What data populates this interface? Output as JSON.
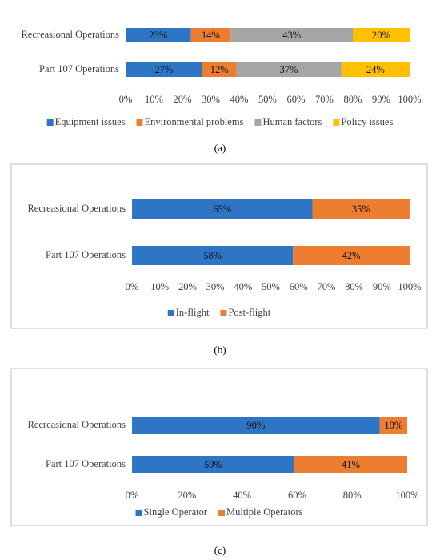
{
  "chart_data": [
    {
      "type": "stacked-bar-horizontal",
      "caption": "(a)",
      "categories": [
        "Recreasional Operations",
        "Part 107 Operations"
      ],
      "series": [
        {
          "name": "Equipment issues",
          "color": "#2e75c6",
          "values": [
            23,
            27
          ],
          "value_labels": [
            "23%",
            "27%"
          ]
        },
        {
          "name": "Environmental problems",
          "color": "#ed7d31",
          "values": [
            14,
            12
          ],
          "value_labels": [
            "14%",
            "12%"
          ]
        },
        {
          "name": "Human factors",
          "color": "#a5a5a5",
          "values": [
            43,
            37
          ],
          "value_labels": [
            "43%",
            "37%"
          ]
        },
        {
          "name": "Policy issues",
          "color": "#ffc000",
          "values": [
            20,
            24
          ],
          "value_labels": [
            "20%",
            "24%"
          ]
        }
      ],
      "xlim": [
        0,
        100
      ],
      "xticks": [
        {
          "value": 0,
          "label": "0%"
        },
        {
          "value": 10,
          "label": "10%"
        },
        {
          "value": 20,
          "label": "20%"
        },
        {
          "value": 30,
          "label": "30%"
        },
        {
          "value": 40,
          "label": "40%"
        },
        {
          "value": 50,
          "label": "50%"
        },
        {
          "value": 60,
          "label": "60%"
        },
        {
          "value": 70,
          "label": "70%"
        },
        {
          "value": 80,
          "label": "80%"
        },
        {
          "value": 90,
          "label": "90%"
        },
        {
          "value": 100,
          "label": "100%"
        }
      ],
      "legend": "bottom"
    },
    {
      "type": "stacked-bar-horizontal",
      "caption": "(b)",
      "categories": [
        "Recreasional Operations",
        "Part 107 Operations"
      ],
      "series": [
        {
          "name": "In-flight",
          "color": "#2e75c6",
          "values": [
            65,
            58
          ],
          "value_labels": [
            "65%",
            "58%"
          ]
        },
        {
          "name": "Post-flight",
          "color": "#ed7d31",
          "values": [
            35,
            42
          ],
          "value_labels": [
            "35%",
            "42%"
          ]
        }
      ],
      "xlim": [
        0,
        100
      ],
      "xticks": [
        {
          "value": 0,
          "label": "0%"
        },
        {
          "value": 10,
          "label": "10%"
        },
        {
          "value": 20,
          "label": "20%"
        },
        {
          "value": 30,
          "label": "30%"
        },
        {
          "value": 40,
          "label": "40%"
        },
        {
          "value": 50,
          "label": "50%"
        },
        {
          "value": 60,
          "label": "60%"
        },
        {
          "value": 70,
          "label": "70%"
        },
        {
          "value": 80,
          "label": "80%"
        },
        {
          "value": 90,
          "label": "90%"
        },
        {
          "value": 100,
          "label": "100%"
        }
      ],
      "legend": "bottom"
    },
    {
      "type": "stacked-bar-horizontal",
      "caption": "(c)",
      "categories": [
        "Recreasional Operations",
        "Part 107 Operations"
      ],
      "series": [
        {
          "name": "Single Operator",
          "color": "#2e75c6",
          "values": [
            90,
            59
          ],
          "value_labels": [
            "90%",
            "59%"
          ]
        },
        {
          "name": "Multiple Operators",
          "color": "#ed7d31",
          "values": [
            10,
            41
          ],
          "value_labels": [
            "10%",
            "41%"
          ]
        }
      ],
      "xlim": [
        0,
        100
      ],
      "xticks": [
        {
          "value": 0,
          "label": "0%"
        },
        {
          "value": 20,
          "label": "20%"
        },
        {
          "value": 40,
          "label": "40%"
        },
        {
          "value": 60,
          "label": "60%"
        },
        {
          "value": 80,
          "label": "80%"
        },
        {
          "value": 100,
          "label": "100%"
        }
      ],
      "legend": "bottom"
    }
  ]
}
